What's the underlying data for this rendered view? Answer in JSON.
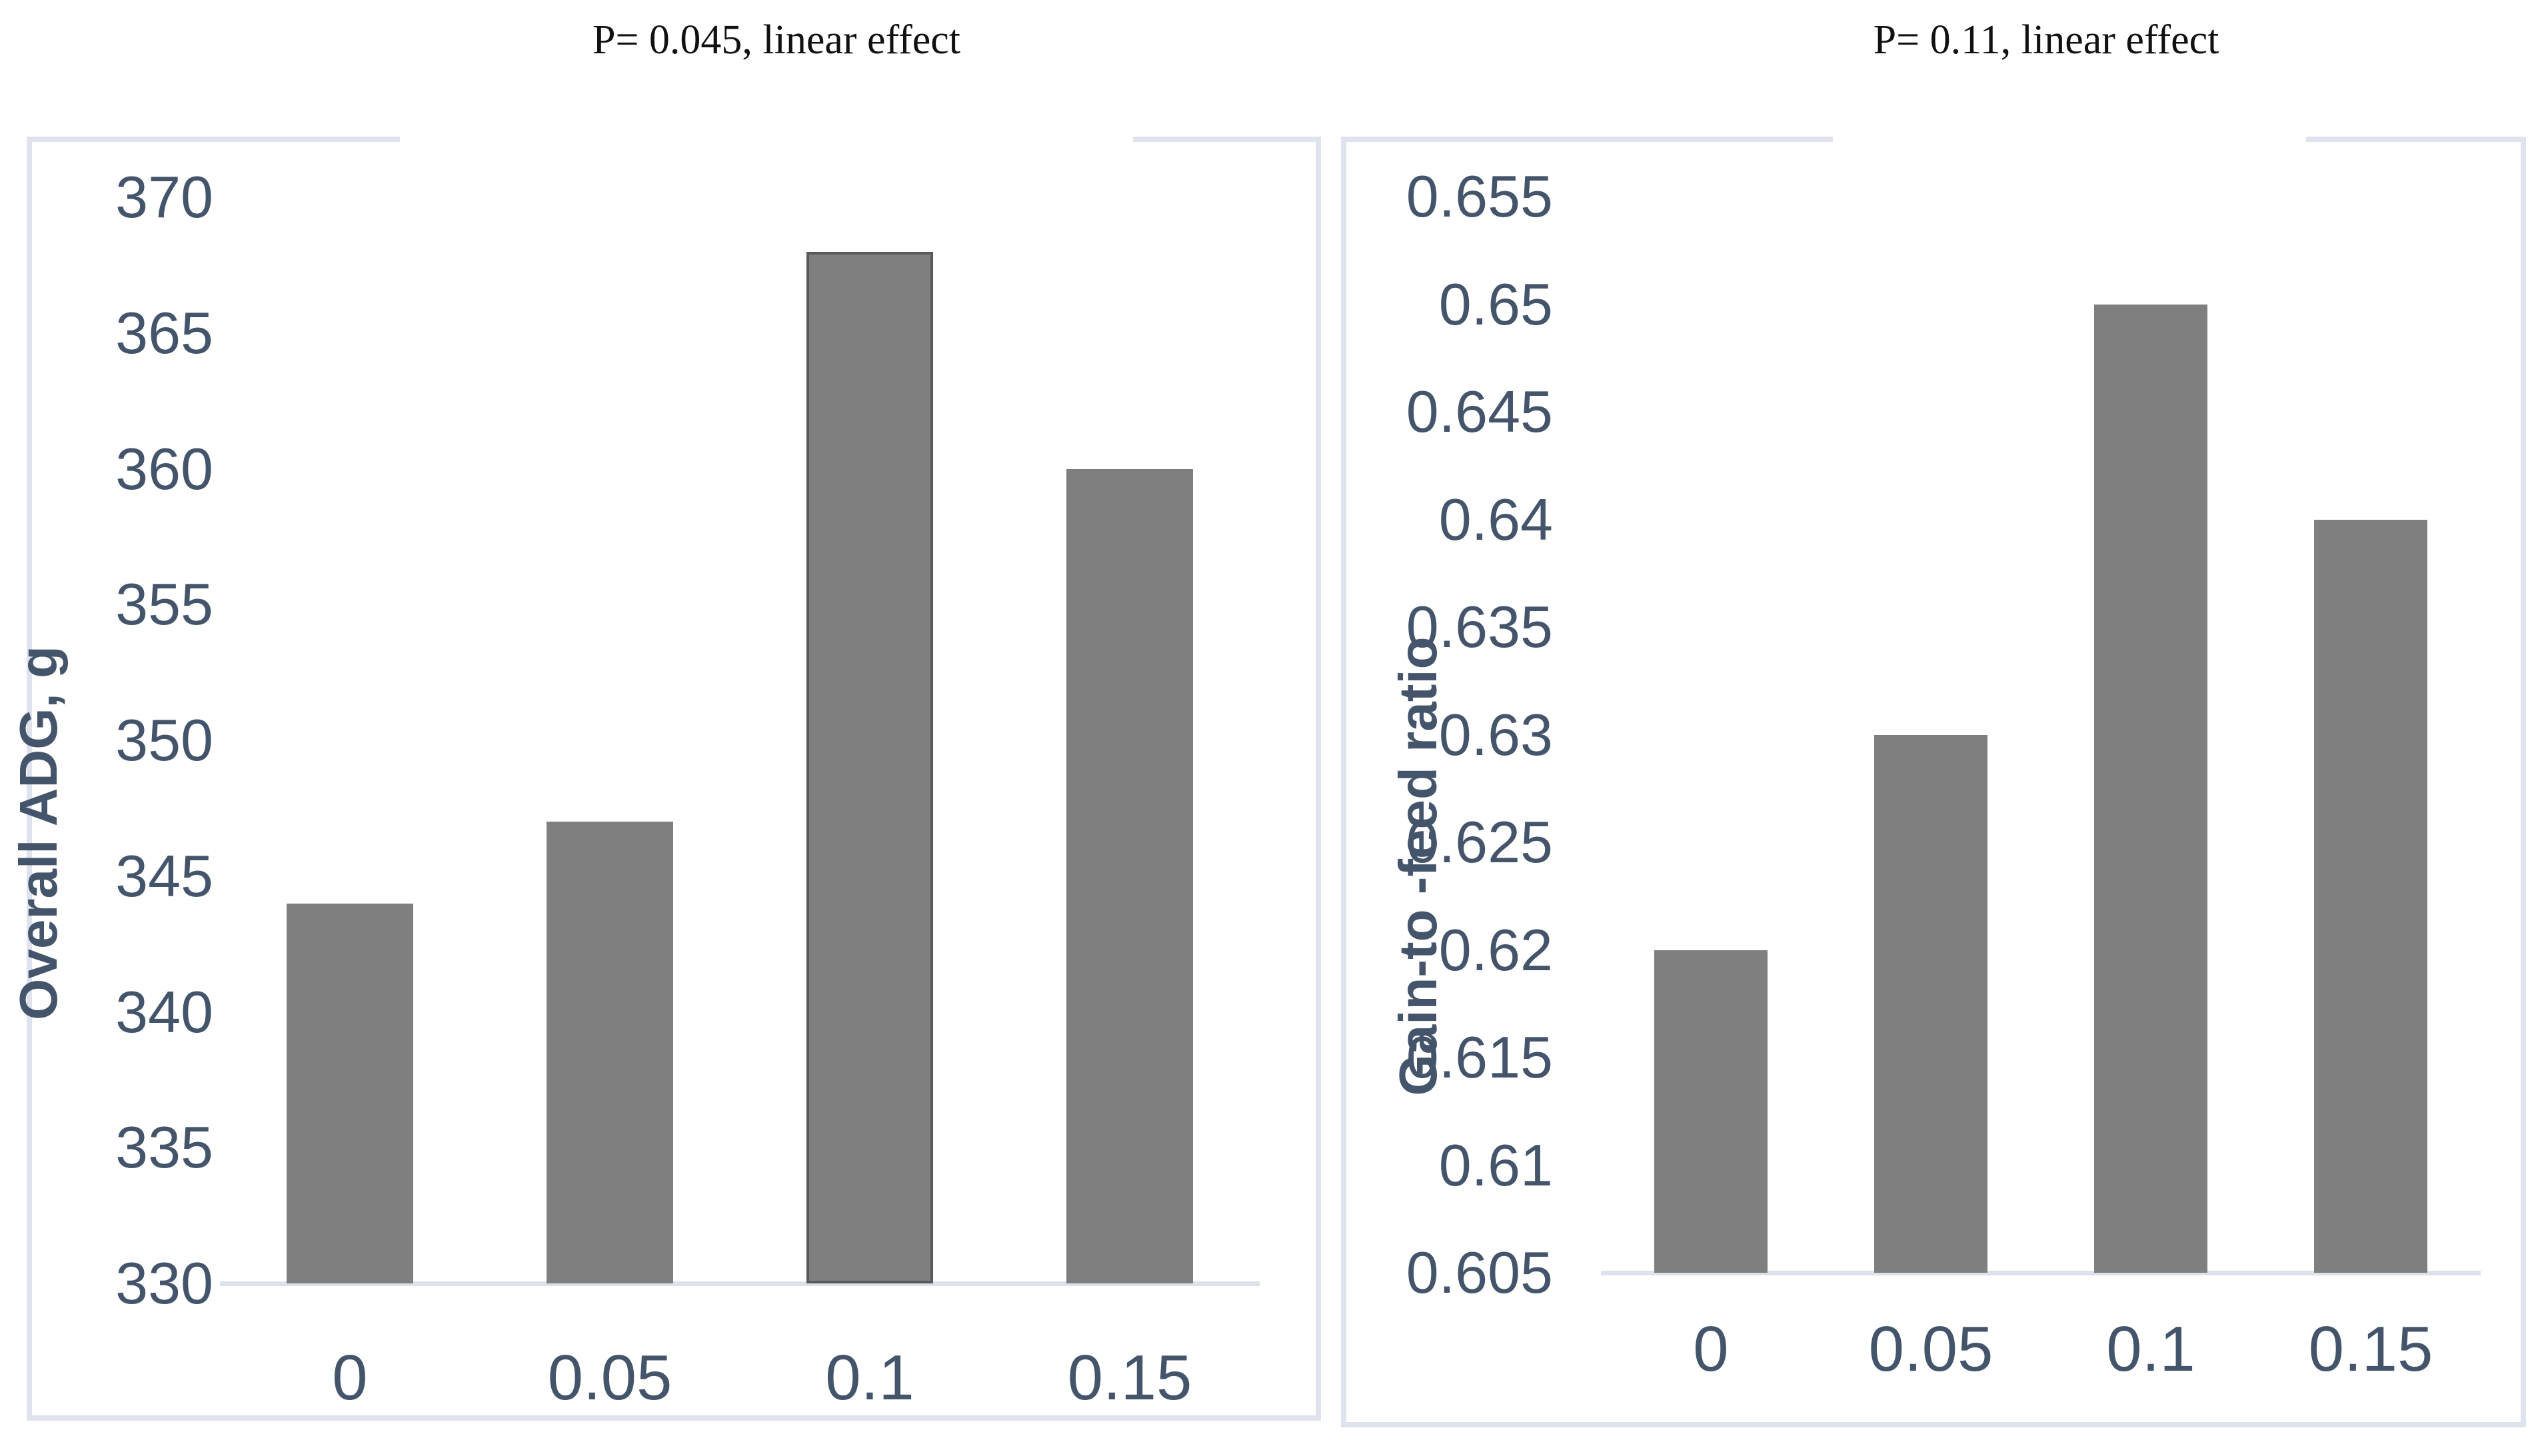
{
  "chart_data": [
    {
      "type": "bar",
      "title": "P= 0.045, linear effect",
      "ylabel": "Overall ADG, g",
      "xlabel": "",
      "categories": [
        "0",
        "0.05",
        "0.1",
        "0.15"
      ],
      "values": [
        344,
        347,
        368,
        360
      ],
      "ylim": [
        330,
        370
      ],
      "ytick_step": 5,
      "grid": false,
      "legend": "none",
      "bar_color": "#7F7F7F",
      "highlighted_bar_index": 2,
      "highlight_outline_color": "#595959",
      "tick_label_color": "#44546A",
      "panel_border_color": "#DEE3ED",
      "axis_line_color": "#DCE1EB"
    },
    {
      "type": "bar",
      "title": "P= 0.11, linear effect",
      "ylabel": "Gain-to -feed ratio",
      "xlabel": "",
      "categories": [
        "0",
        "0.05",
        "0.1",
        "0.15"
      ],
      "values": [
        0.62,
        0.63,
        0.65,
        0.64
      ],
      "ylim": [
        0.605,
        0.655
      ],
      "ytick_step": 0.005,
      "grid": false,
      "legend": "none",
      "bar_color": "#7F7F7F",
      "highlighted_bar_index": null,
      "highlight_outline_color": null,
      "tick_label_color": "#44546A",
      "panel_border_color": "#DEE3ED",
      "axis_line_color": "#DCE1EB"
    }
  ]
}
